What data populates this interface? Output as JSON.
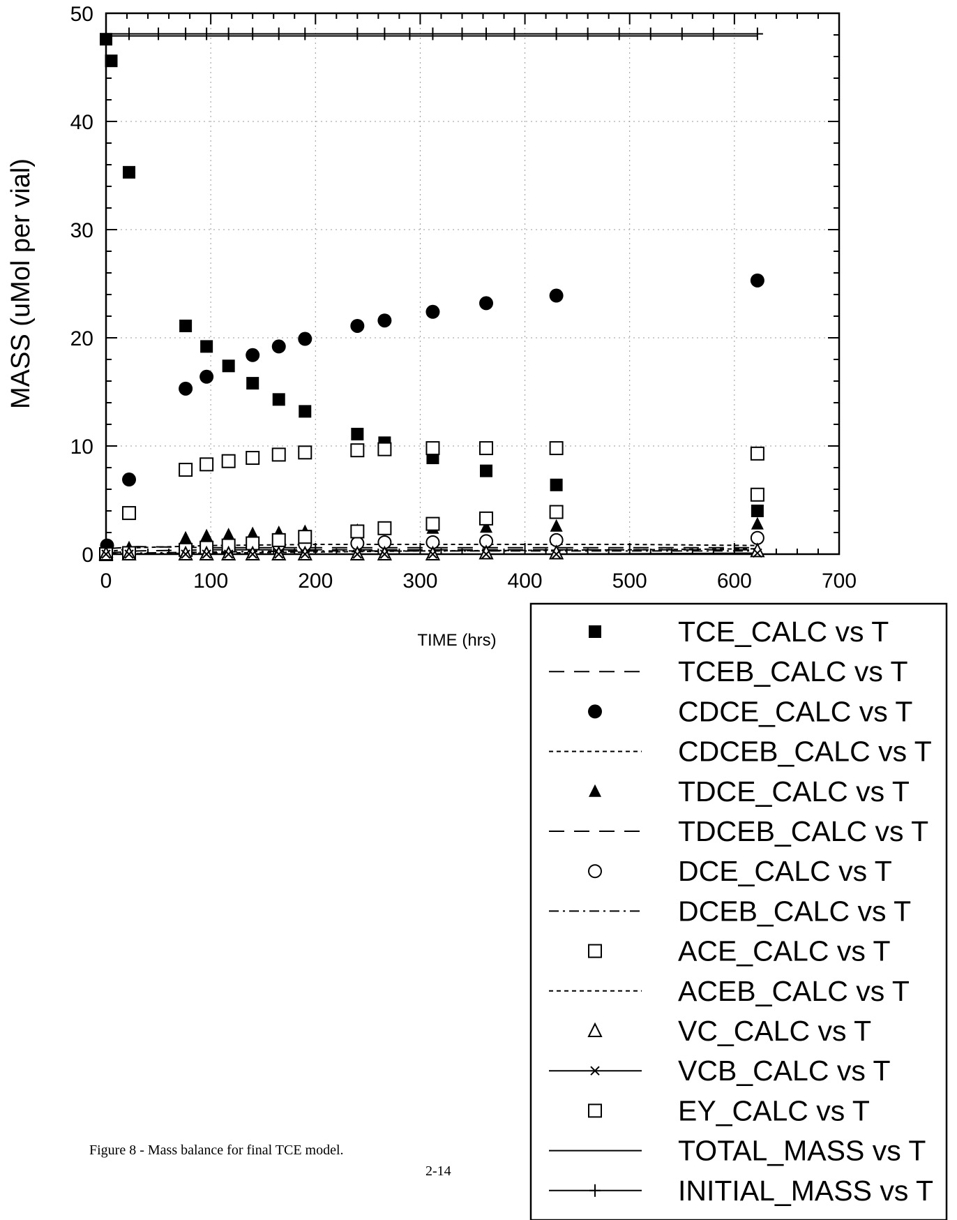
{
  "chart_data": {
    "type": "scatter",
    "title": "",
    "xlabel": "TIME (hrs)",
    "ylabel": "MASS (uMol per vial)",
    "xlim": [
      0,
      700
    ],
    "ylim": [
      0,
      50
    ],
    "xticks": [
      "0",
      "100",
      "200",
      "300",
      "400",
      "500",
      "600",
      "700"
    ],
    "yticks": [
      "0",
      "10",
      "20",
      "30",
      "40",
      "50"
    ],
    "grid": true,
    "legend_position": "bottom-right, outside plot area",
    "series": [
      {
        "name": "TCE_CALC vs T",
        "marker": "filled-square",
        "line": "none",
        "x": [
          0,
          5,
          22,
          76,
          96,
          117,
          140,
          165,
          190,
          240,
          266,
          312,
          363,
          430,
          622
        ],
        "y": [
          47.6,
          45.6,
          35.3,
          21.1,
          19.2,
          17.4,
          15.8,
          14.3,
          13.2,
          11.1,
          10.3,
          8.9,
          7.7,
          6.4,
          4.0
        ]
      },
      {
        "name": "TCEB_CALC vs T",
        "marker": "none",
        "line": "long-dash",
        "x": [
          0,
          30,
          100,
          200,
          300,
          400,
          500,
          622
        ],
        "y": [
          0.5,
          0.7,
          0.6,
          0.6,
          0.6,
          0.6,
          0.6,
          0.6
        ]
      },
      {
        "name": "CDCE_CALC vs T",
        "marker": "filled-circle",
        "line": "none",
        "x": [
          1,
          22,
          76,
          96,
          140,
          165,
          190,
          240,
          266,
          312,
          363,
          430,
          622
        ],
        "y": [
          0.8,
          6.9,
          15.3,
          16.4,
          18.4,
          19.2,
          19.9,
          21.1,
          21.6,
          22.4,
          23.2,
          23.9,
          25.3
        ]
      },
      {
        "name": "CDCEB_CALC vs T",
        "marker": "none",
        "line": "short-dash",
        "x": [
          0,
          30,
          100,
          200,
          300,
          400,
          500,
          622
        ],
        "y": [
          0.2,
          0.6,
          0.8,
          0.9,
          0.9,
          0.9,
          0.9,
          0.8
        ]
      },
      {
        "name": "TDCE_CALC vs T",
        "marker": "filled-triangle",
        "line": "none",
        "x": [
          1,
          22,
          76,
          96,
          117,
          140,
          165,
          190,
          240,
          266,
          312,
          363,
          430,
          622
        ],
        "y": [
          0.2,
          0.6,
          1.5,
          1.7,
          1.8,
          1.9,
          2.0,
          2.1,
          2.2,
          2.3,
          2.4,
          2.5,
          2.6,
          2.8
        ]
      },
      {
        "name": "TDCEB_CALC vs T",
        "marker": "none",
        "line": "long-dash",
        "x": [
          0,
          30,
          100,
          200,
          300,
          400,
          500,
          622
        ],
        "y": [
          0.1,
          0.3,
          0.4,
          0.4,
          0.4,
          0.4,
          0.4,
          0.4
        ]
      },
      {
        "name": "DCE_CALC vs T",
        "marker": "open-circle",
        "line": "none",
        "x": [
          0,
          22,
          76,
          96,
          117,
          140,
          165,
          190,
          240,
          266,
          312,
          363,
          430,
          622
        ],
        "y": [
          0.0,
          0.1,
          0.4,
          0.6,
          0.7,
          0.8,
          0.9,
          0.9,
          1.0,
          1.1,
          1.1,
          1.2,
          1.3,
          1.5
        ]
      },
      {
        "name": "DCEB_CALC vs T",
        "marker": "none",
        "line": "dash-dot",
        "x": [
          0,
          30,
          100,
          200,
          300,
          400,
          500,
          622
        ],
        "y": [
          0.0,
          0.1,
          0.2,
          0.3,
          0.3,
          0.3,
          0.3,
          0.3
        ]
      },
      {
        "name": "ACE_CALC vs T",
        "marker": "open-square",
        "line": "none",
        "x": [
          0,
          22,
          76,
          96,
          117,
          140,
          165,
          190,
          240,
          266,
          312,
          363,
          430,
          622
        ],
        "y": [
          0.0,
          0.1,
          0.4,
          0.6,
          0.8,
          1.0,
          1.3,
          1.6,
          2.1,
          2.4,
          2.8,
          3.3,
          3.9,
          5.5
        ]
      },
      {
        "name": "ACEB_CALC vs T",
        "marker": "none",
        "line": "short-dash",
        "x": [
          0,
          30,
          100,
          200,
          300,
          400,
          500,
          622
        ],
        "y": [
          0.0,
          0.05,
          0.1,
          0.2,
          0.3,
          0.35,
          0.4,
          0.5
        ]
      },
      {
        "name": "VC_CALC vs T",
        "marker": "open-triangle",
        "line": "none",
        "x": [
          0,
          22,
          76,
          96,
          117,
          140,
          165,
          190,
          240,
          266,
          312,
          363,
          430,
          622
        ],
        "y": [
          0.0,
          0.0,
          0.0,
          0.0,
          0.0,
          0.0,
          0.0,
          0.0,
          0.0,
          0.0,
          0.0,
          0.1,
          0.1,
          0.3
        ]
      },
      {
        "name": "VCB_CALC vs T",
        "marker": "x",
        "line": "solid",
        "x": [
          0,
          22,
          76,
          96,
          117,
          140,
          165,
          190,
          240,
          266,
          312,
          363,
          430,
          622
        ],
        "y": [
          0.0,
          0.0,
          0.0,
          0.0,
          0.0,
          0.0,
          0.0,
          0.0,
          0.0,
          0.0,
          0.0,
          0.0,
          0.0,
          0.1
        ]
      },
      {
        "name": "EY_CALC vs T",
        "marker": "open-square",
        "line": "none",
        "x": [
          22,
          76,
          96,
          117,
          140,
          165,
          190,
          240,
          266,
          312,
          363,
          430,
          622
        ],
        "y": [
          3.8,
          7.8,
          8.3,
          8.6,
          8.9,
          9.2,
          9.4,
          9.6,
          9.7,
          9.8,
          9.8,
          9.8,
          9.3
        ]
      },
      {
        "name": "TOTAL_MASS vs T",
        "marker": "none",
        "line": "solid",
        "x": [
          0,
          622
        ],
        "y": [
          47.9,
          47.9
        ]
      },
      {
        "name": "INITIAL_MASS vs T",
        "marker": "plus",
        "line": "solid",
        "x": [
          0,
          22,
          50,
          76,
          96,
          117,
          140,
          165,
          190,
          240,
          266,
          290,
          312,
          340,
          363,
          390,
          430,
          460,
          490,
          520,
          550,
          580,
          622
        ],
        "y": [
          48.1,
          48.1,
          48.1,
          48.1,
          48.1,
          48.1,
          48.1,
          48.1,
          48.1,
          48.1,
          48.1,
          48.1,
          48.1,
          48.1,
          48.1,
          48.1,
          48.1,
          48.1,
          48.1,
          48.1,
          48.1,
          48.1,
          48.1
        ]
      }
    ]
  },
  "caption": "Figure 8 - Mass balance for final TCE model.",
  "page_number": "2-14"
}
